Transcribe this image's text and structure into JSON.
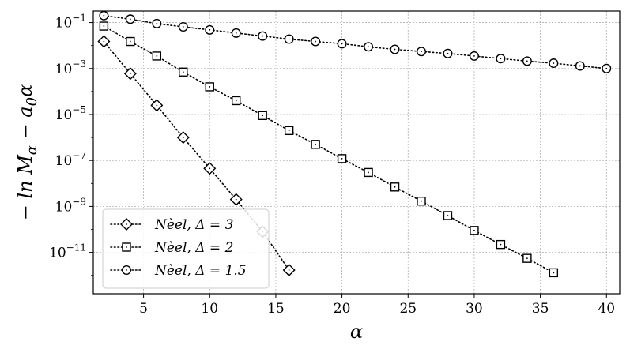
{
  "chart_data": {
    "type": "line",
    "xlabel": "α",
    "ylabel": "− ln M_α − a_0 α",
    "xlim": [
      1.2,
      41.0
    ],
    "ylim_log10": [
      -12.8,
      -0.5
    ],
    "y_scale": "log",
    "grid": true,
    "line_style": "dotted",
    "line_color": "#000000",
    "legend_position": "lower-left",
    "x_ticks": [
      5,
      10,
      15,
      20,
      25,
      30,
      35,
      40
    ],
    "y_tick_exponents": [
      -1,
      -3,
      -5,
      -7,
      -9,
      -11
    ],
    "series": [
      {
        "name": "Nèel, Δ = 3",
        "marker": "diamond",
        "x": [
          2,
          4,
          6,
          8,
          10,
          12,
          14,
          16
        ],
        "y": [
          0.015,
          0.0006,
          2.5e-05,
          1e-06,
          4.5e-08,
          2e-09,
          8e-11,
          1.7e-12
        ]
      },
      {
        "name": "Nèel, Δ = 2",
        "marker": "square",
        "x": [
          2,
          4,
          6,
          8,
          10,
          12,
          14,
          16,
          18,
          20,
          22,
          24,
          26,
          28,
          30,
          32,
          34,
          36
        ],
        "y": [
          0.07,
          0.015,
          0.0035,
          0.0007,
          0.00016,
          4e-05,
          9e-06,
          2e-06,
          5e-07,
          1.2e-07,
          3e-08,
          7e-09,
          1.7e-09,
          4e-10,
          9e-11,
          2.2e-11,
          5.5e-12,
          1.3e-12
        ]
      },
      {
        "name": "Nèel, Δ = 1.5",
        "marker": "circle",
        "x": [
          2,
          4,
          6,
          8,
          10,
          12,
          14,
          16,
          18,
          20,
          22,
          24,
          26,
          28,
          30,
          32,
          34,
          36,
          38,
          40
        ],
        "y": [
          0.2,
          0.14,
          0.09,
          0.065,
          0.048,
          0.035,
          0.026,
          0.019,
          0.015,
          0.012,
          0.0088,
          0.0068,
          0.0055,
          0.0045,
          0.0035,
          0.0027,
          0.0021,
          0.0017,
          0.0013,
          0.001
        ]
      }
    ]
  }
}
